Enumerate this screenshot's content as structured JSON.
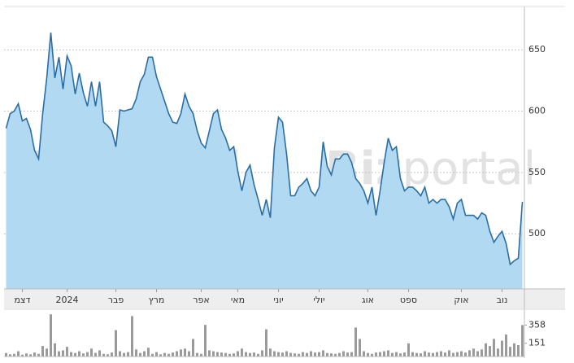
{
  "watermark": [
    "Biz",
    "portal"
  ],
  "chart_data": [
    {
      "type": "area",
      "categories": [
        null,
        null,
        null,
        null,
        "דצמ",
        null,
        null,
        null,
        null,
        null,
        null,
        null,
        null,
        null,
        null,
        "2024",
        null,
        null,
        null,
        null,
        null,
        null,
        null,
        null,
        null,
        null,
        null,
        "פבר",
        null,
        null,
        null,
        null,
        null,
        null,
        null,
        null,
        null,
        "מרץ",
        null,
        null,
        null,
        null,
        null,
        null,
        null,
        null,
        null,
        null,
        "אפר",
        null,
        null,
        null,
        null,
        null,
        null,
        null,
        null,
        "מאי",
        null,
        null,
        null,
        null,
        null,
        null,
        null,
        null,
        null,
        "יוני",
        null,
        null,
        null,
        null,
        null,
        null,
        null,
        null,
        null,
        "יולי",
        null,
        null,
        null,
        null,
        null,
        null,
        null,
        null,
        null,
        null,
        null,
        "אוג",
        null,
        null,
        null,
        null,
        null,
        null,
        null,
        null,
        null,
        "ספט",
        null,
        null,
        null,
        null,
        null,
        null,
        null,
        null,
        null,
        null,
        null,
        null,
        "אוק",
        null,
        null,
        null,
        null,
        null,
        null,
        null,
        null,
        null,
        "נוב",
        null,
        null,
        null,
        null,
        null
      ],
      "values": [
        586,
        598,
        600,
        606,
        592,
        594,
        585,
        568,
        561,
        598,
        627,
        664,
        627,
        644,
        618,
        645,
        637,
        614,
        631,
        615,
        604,
        624,
        604,
        624,
        591,
        588,
        584,
        571,
        601,
        600,
        601,
        602,
        610,
        624,
        630,
        644,
        644,
        628,
        618,
        608,
        598,
        591,
        590,
        598,
        614,
        604,
        598,
        584,
        574,
        570,
        584,
        598,
        601,
        585,
        578,
        568,
        571,
        551,
        535,
        550,
        556,
        540,
        528,
        515,
        528,
        513,
        570,
        595,
        591,
        565,
        531,
        531,
        538,
        541,
        545,
        535,
        531,
        538,
        575,
        555,
        548,
        561,
        561,
        565,
        565,
        558,
        545,
        541,
        535,
        525,
        538,
        515,
        535,
        558,
        578,
        568,
        571,
        545,
        535,
        538,
        538,
        535,
        531,
        538,
        525,
        528,
        525,
        528,
        528,
        522,
        512,
        525,
        528,
        515,
        515,
        515,
        512,
        517,
        515,
        502,
        493,
        498,
        502,
        492,
        475,
        478,
        480,
        526
      ],
      "color": "#2a6ea6",
      "fill": "#b2d9f2",
      "ylim": [
        455,
        684
      ],
      "yticks": [
        500,
        550,
        600,
        650
      ],
      "grid": true
    },
    {
      "type": "bar",
      "values": [
        40,
        25,
        30,
        60,
        20,
        35,
        25,
        45,
        30,
        120,
        90,
        480,
        150,
        60,
        70,
        110,
        50,
        40,
        60,
        35,
        50,
        90,
        40,
        70,
        30,
        25,
        45,
        300,
        60,
        40,
        50,
        460,
        80,
        40,
        60,
        100,
        30,
        50,
        25,
        40,
        30,
        45,
        60,
        80,
        90,
        60,
        200,
        40,
        30,
        360,
        70,
        60,
        50,
        45,
        40,
        30,
        35,
        60,
        90,
        50,
        40,
        45,
        30,
        70,
        310,
        90,
        60,
        50,
        45,
        60,
        40,
        35,
        30,
        50,
        40,
        60,
        45,
        50,
        70,
        40,
        35,
        30,
        40,
        60,
        45,
        50,
        330,
        200,
        60,
        40,
        30,
        45,
        50,
        60,
        70,
        40,
        50,
        35,
        45,
        150,
        50,
        40,
        35,
        60,
        45,
        40,
        50,
        60,
        45,
        70,
        40,
        50,
        60,
        45,
        70,
        90,
        60,
        80,
        150,
        120,
        200,
        90,
        180,
        250,
        110,
        150,
        130,
        358
      ],
      "color": "#9a9a9a",
      "ylim": [
        0,
        510
      ],
      "yticks": [
        151,
        358
      ]
    }
  ]
}
